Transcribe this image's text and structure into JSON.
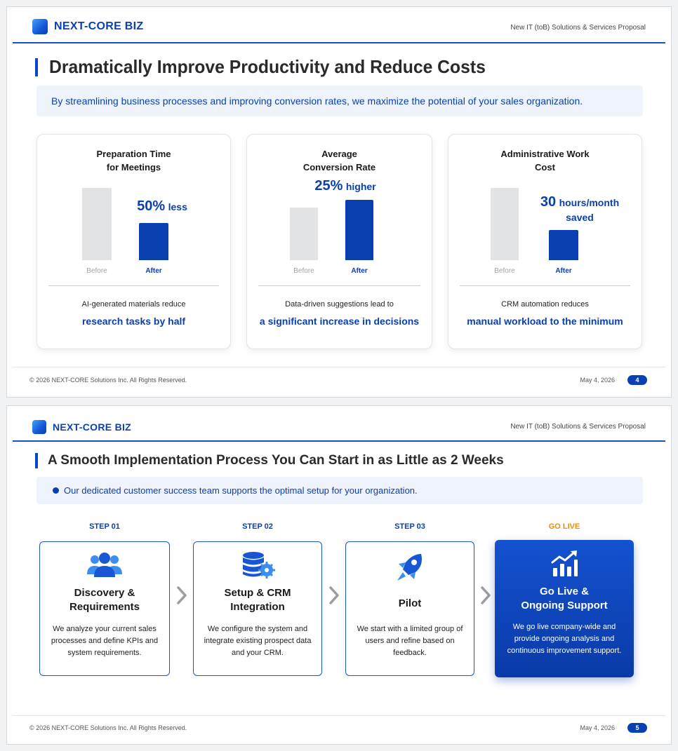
{
  "brand": {
    "name": "NEXT-CORE BIZ",
    "tagline": "New IT (toB) Solutions & Services Proposal"
  },
  "colors": {
    "primary": "#0a3fb0",
    "accent": "#f08a00",
    "gray_bar": "#e2e3e5",
    "banner_bg": "#eef3fc"
  },
  "slides": [
    {
      "title": "Dramatically Improve Productivity and Reduce Costs",
      "banner": "By streamlining business processes and improving conversion rates, we maximize the potential of your sales organization.",
      "cards": [
        {
          "title_line1": "Preparation Time",
          "title_line2": "for Meetings",
          "metric_big": "50%",
          "metric_small": "less",
          "before_label": "Before",
          "after_label": "After",
          "subtext": "AI-generated materials reduce",
          "highlight": "research tasks by half"
        },
        {
          "title_line1": "Average",
          "title_line2": "Conversion Rate",
          "metric_big": "25%",
          "metric_small": "higher",
          "before_label": "Before",
          "after_label": "After",
          "subtext": "Data-driven suggestions lead to",
          "highlight": "a significant increase in decisions"
        },
        {
          "title_line1": "Administrative Work",
          "title_line2": "Cost",
          "metric_big": "30",
          "metric_small": "hours/month",
          "metric_line2": "saved",
          "before_label": "Before",
          "after_label": "After",
          "subtext": "CRM automation reduces",
          "highlight": "manual workload to the minimum"
        }
      ],
      "footer": {
        "copyright": "© 2026 NEXT-CORE Solutions Inc. All Rights Reserved.",
        "date": "May 4, 2026",
        "page": "4"
      }
    },
    {
      "title": "A Smooth Implementation Process You Can Start in as Little as 2 Weeks",
      "banner": "Our dedicated customer success team supports the optimal setup for your organization.",
      "steps": [
        {
          "label": "STEP 01",
          "icon": "users-icon",
          "title_line1": "Discovery &",
          "title_line2": "Requirements",
          "desc_line1": "We analyze your current sales",
          "desc_line2": "processes and define KPIs and",
          "desc_line3": "system requirements."
        },
        {
          "label": "STEP 02",
          "icon": "database-gear-icon",
          "title_line1": "Setup & CRM",
          "title_line2": "Integration",
          "desc_line1": "We configure the system and",
          "desc_line2": "integrate existing prospect data",
          "desc_line3": "and your CRM."
        },
        {
          "label": "STEP 03",
          "icon": "rocket-icon",
          "title_line1": "Pilot",
          "desc_line1": "We start with a limited group of",
          "desc_line2": "users and refine based on",
          "desc_line3": "feedback."
        },
        {
          "label": "GO LIVE",
          "icon": "growth-chart-icon",
          "title_line1": "Go Live &",
          "title_line2": "Ongoing Support",
          "desc_line1": "We go live company-wide and",
          "desc_line2": "provide ongoing analysis and",
          "desc_line3": "continuous improvement support."
        }
      ],
      "footer": {
        "copyright": "© 2026 NEXT-CORE Solutions Inc. All Rights Reserved.",
        "date": "May 4, 2026",
        "page": "5"
      }
    }
  ]
}
